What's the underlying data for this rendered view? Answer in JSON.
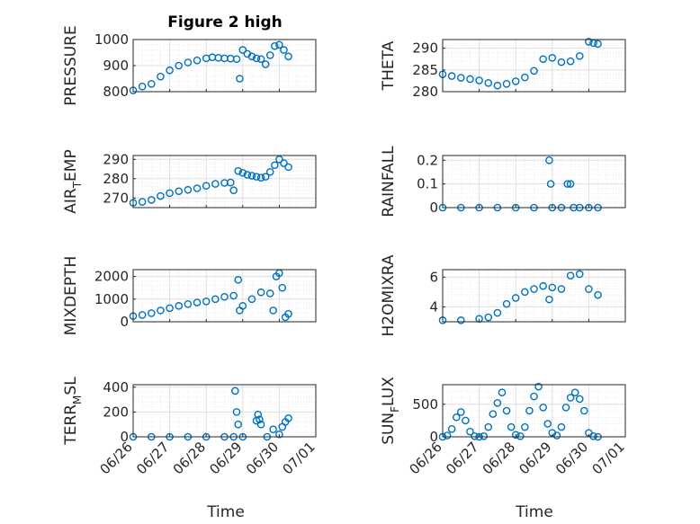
{
  "figure": {
    "title": "Figure 2 high",
    "xlabel": "Time"
  },
  "colors": {
    "marker": "#0072BD",
    "axis": "#262626",
    "grid_major": "#dfdfdf",
    "grid_minor": "#ececec"
  },
  "chart_data": [
    {
      "type": "scatter",
      "ylabel": "PRESSURE",
      "title": "Figure 2 high",
      "xlim": [
        "06/26",
        "07/01"
      ],
      "ylim": [
        800,
        1000
      ],
      "yticks": [
        800,
        900,
        1000
      ],
      "ytick_labels": [
        "800",
        "900",
        "1000"
      ],
      "xticks": [
        "06/26",
        "06/27",
        "06/28",
        "06/29",
        "06/30",
        "07/01"
      ],
      "show_xtick_labels": false,
      "grid": true,
      "series": [
        {
          "x": [
            "06/26 00:00",
            "06/26 06:00",
            "06/26 12:00",
            "06/26 18:00",
            "06/27 00:00",
            "06/27 06:00",
            "06/27 12:00",
            "06/27 18:00",
            "06/28 00:00",
            "06/28 04:00",
            "06/28 08:00",
            "06/28 12:00",
            "06/28 16:00",
            "06/28 20:00",
            "06/28 22:00",
            "06/29 00:00",
            "06/29 03:00",
            "06/29 06:00",
            "06/29 09:00",
            "06/29 12:00",
            "06/29 15:00",
            "06/29 18:00",
            "06/29 21:00",
            "06/30 00:00",
            "06/30 03:00",
            "06/30 06:00"
          ],
          "y": [
            805,
            820,
            830,
            858,
            882,
            900,
            912,
            920,
            928,
            932,
            930,
            928,
            927,
            925,
            850,
            960,
            945,
            935,
            928,
            925,
            905,
            940,
            975,
            980,
            960,
            935
          ]
        }
      ]
    },
    {
      "type": "scatter",
      "ylabel": "THETA",
      "xlim": [
        "06/26",
        "07/01"
      ],
      "ylim": [
        280,
        292
      ],
      "yticks": [
        280,
        285,
        290
      ],
      "ytick_labels": [
        "280",
        "285",
        "290"
      ],
      "xticks": [
        "06/26",
        "06/27",
        "06/28",
        "06/29",
        "06/30",
        "07/01"
      ],
      "show_xtick_labels": false,
      "grid": true,
      "series": [
        {
          "x": [
            "06/26 00:00",
            "06/26 06:00",
            "06/26 12:00",
            "06/26 18:00",
            "06/27 00:00",
            "06/27 06:00",
            "06/27 12:00",
            "06/27 18:00",
            "06/28 00:00",
            "06/28 06:00",
            "06/28 12:00",
            "06/28 18:00",
            "06/29 00:00",
            "06/29 06:00",
            "06/29 12:00",
            "06/29 18:00",
            "06/30 00:00",
            "06/30 03:00",
            "06/30 06:00"
          ],
          "y": [
            284,
            283.6,
            283.2,
            282.9,
            282.6,
            282,
            281.4,
            281.8,
            282.4,
            283.3,
            284.8,
            287.5,
            287.8,
            286.8,
            287,
            288.2,
            291.5,
            291.2,
            291
          ]
        }
      ]
    },
    {
      "type": "scatter",
      "ylabel": "AIR_TEMP",
      "ylabel_parts": [
        "AIR",
        "T",
        "EMP"
      ],
      "xlim": [
        "06/26",
        "07/01"
      ],
      "ylim": [
        265,
        292
      ],
      "yticks": [
        270,
        280,
        290
      ],
      "ytick_labels": [
        "270",
        "280",
        "290"
      ],
      "xticks": [
        "06/26",
        "06/27",
        "06/28",
        "06/29",
        "06/30",
        "07/01"
      ],
      "show_xtick_labels": false,
      "grid": true,
      "series": [
        {
          "x": [
            "06/26 00:00",
            "06/26 06:00",
            "06/26 12:00",
            "06/26 18:00",
            "06/27 00:00",
            "06/27 06:00",
            "06/27 12:00",
            "06/27 18:00",
            "06/28 00:00",
            "06/28 06:00",
            "06/28 12:00",
            "06/28 16:00",
            "06/28 18:00",
            "06/28 21:00",
            "06/29 00:00",
            "06/29 03:00",
            "06/29 06:00",
            "06/29 09:00",
            "06/29 12:00",
            "06/29 15:00",
            "06/29 18:00",
            "06/29 21:00",
            "06/30 00:00",
            "06/30 03:00",
            "06/30 06:00"
          ],
          "y": [
            267.5,
            268,
            269,
            271,
            272.5,
            273.5,
            274.2,
            275,
            276.3,
            277.3,
            277.8,
            278,
            274,
            284,
            283,
            282,
            281.5,
            281,
            280.5,
            281,
            283.5,
            287,
            290,
            288,
            286
          ]
        }
      ]
    },
    {
      "type": "scatter",
      "ylabel": "RAINFALL",
      "xlim": [
        "06/26",
        "07/01"
      ],
      "ylim": [
        0,
        0.22
      ],
      "yticks": [
        0,
        0.1,
        0.2
      ],
      "ytick_labels": [
        "0",
        "0.1",
        "0.2"
      ],
      "xticks": [
        "06/26",
        "06/27",
        "06/28",
        "06/29",
        "06/30",
        "07/01"
      ],
      "show_xtick_labels": false,
      "grid": true,
      "series": [
        {
          "x": [
            "06/26 00:00",
            "06/26 12:00",
            "06/27 00:00",
            "06/27 12:00",
            "06/28 00:00",
            "06/28 12:00",
            "06/28 22:00",
            "06/28 23:00",
            "06/29 00:00",
            "06/29 06:00",
            "06/29 10:00",
            "06/29 12:00",
            "06/29 14:00",
            "06/29 18:00",
            "06/30 00:00",
            "06/30 06:00"
          ],
          "y": [
            0,
            0,
            0,
            0,
            0,
            0,
            0.2,
            0.1,
            0,
            0,
            0.1,
            0.1,
            0,
            0,
            0,
            0
          ]
        }
      ]
    },
    {
      "type": "scatter",
      "ylabel": "MIXDEPTH",
      "xlim": [
        "06/26",
        "07/01"
      ],
      "ylim": [
        0,
        2300
      ],
      "yticks": [
        0,
        1000,
        2000
      ],
      "ytick_labels": [
        "0",
        "1000",
        "2000"
      ],
      "xticks": [
        "06/26",
        "06/27",
        "06/28",
        "06/29",
        "06/30",
        "07/01"
      ],
      "show_xtick_labels": false,
      "grid": true,
      "series": [
        {
          "x": [
            "06/26 00:00",
            "06/26 06:00",
            "06/26 12:00",
            "06/26 18:00",
            "06/27 00:00",
            "06/27 06:00",
            "06/27 12:00",
            "06/27 18:00",
            "06/28 00:00",
            "06/28 06:00",
            "06/28 12:00",
            "06/28 18:00",
            "06/28 21:00",
            "06/28 22:00",
            "06/29 00:00",
            "06/29 06:00",
            "06/29 12:00",
            "06/29 18:00",
            "06/29 20:00",
            "06/29 22:00",
            "06/30 00:00",
            "06/30 02:00",
            "06/30 04:00",
            "06/30 06:00"
          ],
          "y": [
            250,
            300,
            380,
            500,
            600,
            700,
            780,
            850,
            900,
            1000,
            1100,
            1150,
            1850,
            500,
            700,
            1000,
            1300,
            1250,
            500,
            2000,
            2150,
            1500,
            200,
            350
          ]
        }
      ]
    },
    {
      "type": "scatter",
      "ylabel": "H2OMIXRA",
      "xlim": [
        "06/26",
        "07/01"
      ],
      "ylim": [
        3,
        6.5
      ],
      "yticks": [
        4,
        6
      ],
      "ytick_labels": [
        "4",
        "6"
      ],
      "xticks": [
        "06/26",
        "06/27",
        "06/28",
        "06/29",
        "06/30",
        "07/01"
      ],
      "show_xtick_labels": false,
      "grid": true,
      "series": [
        {
          "x": [
            "06/26 00:00",
            "06/26 12:00",
            "06/27 00:00",
            "06/27 06:00",
            "06/27 12:00",
            "06/27 18:00",
            "06/28 00:00",
            "06/28 06:00",
            "06/28 12:00",
            "06/28 18:00",
            "06/28 22:00",
            "06/29 00:00",
            "06/29 06:00",
            "06/29 12:00",
            "06/29 18:00",
            "06/30 00:00",
            "06/30 06:00"
          ],
          "y": [
            3.1,
            3.1,
            3.2,
            3.3,
            3.6,
            4.2,
            4.6,
            5,
            5.2,
            5.4,
            4.5,
            5.3,
            5.2,
            6.1,
            6.2,
            5.2,
            4.8
          ]
        }
      ]
    },
    {
      "type": "scatter",
      "ylabel": "TERR_MSL",
      "ylabel_parts": [
        "TERR",
        "M",
        "SL"
      ],
      "xlim": [
        "06/26",
        "07/01"
      ],
      "ylim": [
        0,
        420
      ],
      "yticks": [
        0,
        200,
        400
      ],
      "ytick_labels": [
        "0",
        "200",
        "400"
      ],
      "xticks": [
        "06/26",
        "06/27",
        "06/28",
        "06/29",
        "06/30",
        "07/01"
      ],
      "xtick_labels": [
        "06/26",
        "06/27",
        "06/28",
        "06/29",
        "06/30",
        "07/01"
      ],
      "grid": true,
      "series": [
        {
          "x": [
            "06/26 00:00",
            "06/26 12:00",
            "06/27 00:00",
            "06/27 12:00",
            "06/28 00:00",
            "06/28 12:00",
            "06/28 18:00",
            "06/28 19:00",
            "06/28 20:00",
            "06/28 21:00",
            "06/29 00:00",
            "06/29 09:00",
            "06/29 10:00",
            "06/29 11:00",
            "06/29 12:00",
            "06/29 16:00",
            "06/29 20:00",
            "06/30 00:00",
            "06/30 02:00",
            "06/30 04:00",
            "06/30 06:00"
          ],
          "y": [
            0,
            0,
            0,
            0,
            0,
            0,
            0,
            370,
            200,
            100,
            0,
            130,
            180,
            140,
            100,
            0,
            60,
            20,
            80,
            120,
            150
          ]
        }
      ]
    },
    {
      "type": "scatter",
      "ylabel": "SUN_FLUX",
      "ylabel_parts": [
        "SUN",
        "F",
        "LUX"
      ],
      "xlim": [
        "06/26",
        "07/01"
      ],
      "ylim": [
        0,
        800
      ],
      "yticks": [
        0,
        500
      ],
      "ytick_labels": [
        "0",
        "500"
      ],
      "xticks": [
        "06/26",
        "06/27",
        "06/28",
        "06/29",
        "06/30",
        "07/01"
      ],
      "xtick_labels": [
        "06/26",
        "06/27",
        "06/28",
        "06/29",
        "06/30",
        "07/01"
      ],
      "grid": true,
      "series": [
        {
          "x": [
            "06/26 00:00",
            "06/26 03:00",
            "06/26 06:00",
            "06/26 09:00",
            "06/26 12:00",
            "06/26 15:00",
            "06/26 18:00",
            "06/26 21:00",
            "06/27 00:00",
            "06/27 03:00",
            "06/27 06:00",
            "06/27 09:00",
            "06/27 12:00",
            "06/27 15:00",
            "06/27 18:00",
            "06/27 21:00",
            "06/28 00:00",
            "06/28 03:00",
            "06/28 06:00",
            "06/28 09:00",
            "06/28 12:00",
            "06/28 15:00",
            "06/28 18:00",
            "06/28 21:00",
            "06/29 00:00",
            "06/29 03:00",
            "06/29 06:00",
            "06/29 09:00",
            "06/29 12:00",
            "06/29 15:00",
            "06/29 18:00",
            "06/29 21:00",
            "06/30 00:00",
            "06/30 03:00",
            "06/30 06:00"
          ],
          "y": [
            0,
            20,
            120,
            300,
            380,
            250,
            80,
            10,
            0,
            10,
            150,
            350,
            520,
            680,
            400,
            150,
            30,
            10,
            150,
            400,
            620,
            770,
            450,
            200,
            60,
            20,
            150,
            450,
            600,
            680,
            580,
            400,
            60,
            10,
            0
          ]
        }
      ]
    }
  ]
}
